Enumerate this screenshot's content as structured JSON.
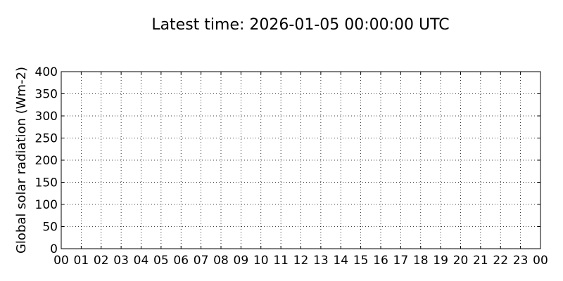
{
  "chart_data": {
    "type": "line",
    "title": "Latest time: 2026-01-05 00:00:00 UTC",
    "xlabel": "",
    "ylabel": "Global solar radiation (Wm-2)",
    "x_tick_labels": [
      "00",
      "01",
      "02",
      "03",
      "04",
      "05",
      "06",
      "07",
      "08",
      "09",
      "10",
      "11",
      "12",
      "13",
      "14",
      "15",
      "16",
      "17",
      "18",
      "19",
      "20",
      "21",
      "22",
      "23",
      "00"
    ],
    "y_ticks": [
      0,
      50,
      100,
      150,
      200,
      250,
      300,
      350,
      400
    ],
    "ylim": [
      0,
      400
    ],
    "grid": true,
    "series": []
  }
}
